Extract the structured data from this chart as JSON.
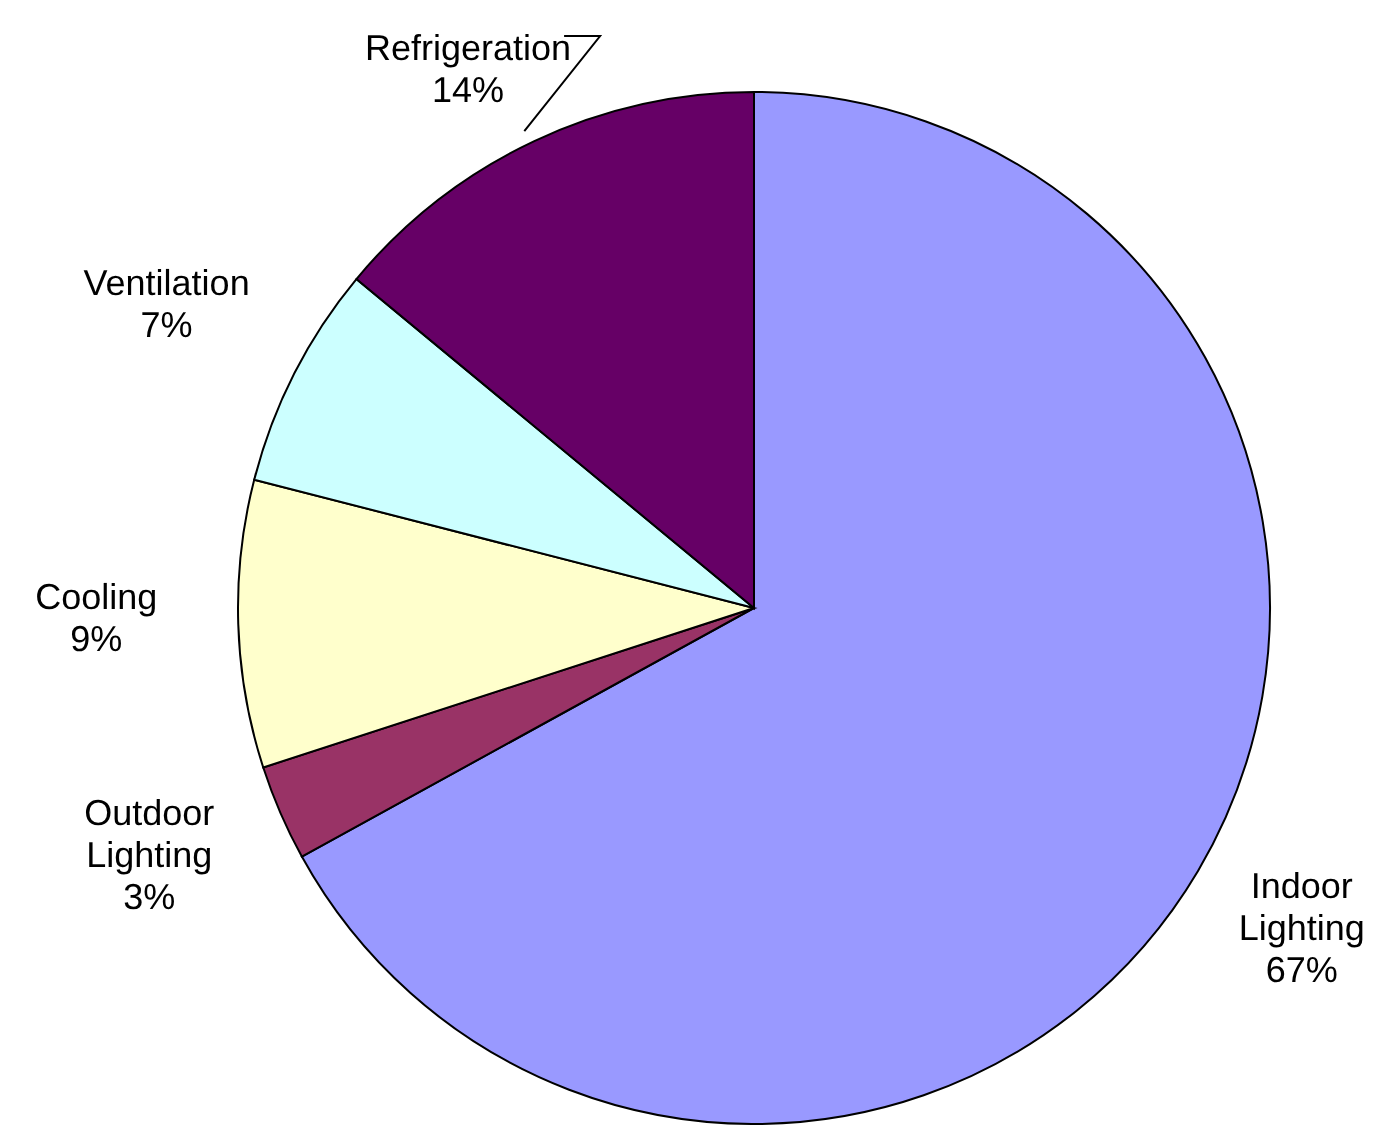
{
  "chart_data": {
    "type": "pie",
    "categories": [
      "Indoor Lighting",
      "Outdoor Lighting",
      "Cooling",
      "Ventilation",
      "Refrigeration"
    ],
    "values": [
      67,
      3,
      9,
      7,
      14
    ],
    "colors": [
      "#9999ff",
      "#993366",
      "#ffffcc",
      "#ccffff",
      "#660066"
    ],
    "value_labels": [
      "67%",
      "3%",
      "9%",
      "7%",
      "14%"
    ]
  }
}
